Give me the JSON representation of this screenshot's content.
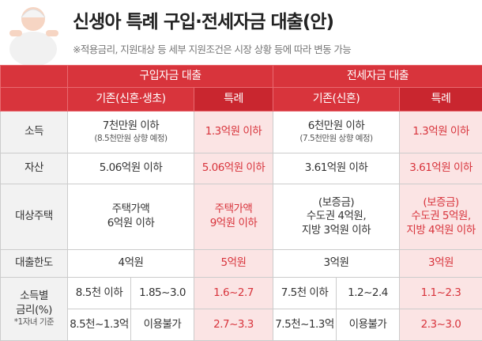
{
  "header": {
    "title": "신생아 특례 구입·전세자금 대출(안)",
    "subtitle": "※적용금리, 지원대상 등 세부 지원조건은 시장 상황 등에 따라 변동 가능"
  },
  "table": {
    "groups": [
      "구입자금 대출",
      "전세자금 대출"
    ],
    "columns": [
      "기존(신혼·생초)",
      "특례",
      "기존(신혼)",
      "특례"
    ],
    "rows": [
      {
        "label": "소득",
        "cells": [
          [
            "7천만원 이하",
            "(8.5천만원 상향 예정)"
          ],
          [
            "1.3억원 이하"
          ],
          [
            "6천만원 이하",
            "(7.5천만원 상향 예정)"
          ],
          [
            "1.3억원 이하"
          ]
        ]
      },
      {
        "label": "자산",
        "cells": [
          [
            "5.06억원 이하"
          ],
          [
            "5.06억원 이하"
          ],
          [
            "3.61억원 이하"
          ],
          [
            "3.61억원 이하"
          ]
        ]
      },
      {
        "label": "대상주택",
        "cells": [
          [
            "주택가액",
            "6억원 이하"
          ],
          [
            "주택가액",
            "9억원 이하"
          ],
          [
            "(보증금)",
            "수도권 4억원,",
            "지방 3억원 이하"
          ],
          [
            "(보증금)",
            "수도권 5억원,",
            "지방 4억원 이하"
          ]
        ]
      },
      {
        "label": "대출한도",
        "cells": [
          [
            "4억원"
          ],
          [
            "5억원"
          ],
          [
            "3억원"
          ],
          [
            "3억원"
          ]
        ]
      }
    ],
    "rates": {
      "label": [
        "소득별",
        "금리(%)"
      ],
      "note": "*1자녀 기준",
      "rows": [
        [
          "8.5천 이하",
          "1.85~3.0",
          "1.6~2.7",
          "7.5천 이하",
          "1.2~2.4",
          "1.1~2.3"
        ],
        [
          "8.5천~1.3억",
          "이용불가",
          "2.7~3.3",
          "7.5천~1.3억",
          "이용불가",
          "2.3~3.0"
        ]
      ]
    }
  }
}
